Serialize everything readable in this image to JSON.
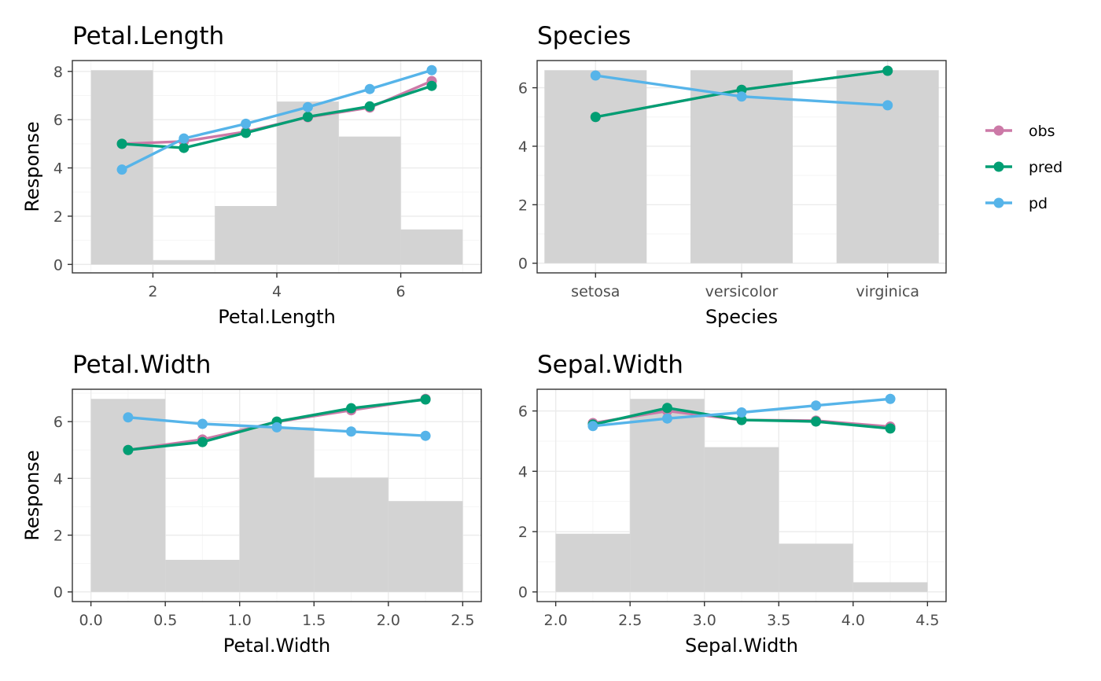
{
  "colors": {
    "obs": "#CC79A7",
    "pred": "#009E73",
    "pd": "#56B4E9",
    "hist": "#d3d3d3",
    "grid_major": "#ebebeb",
    "grid_minor": "#f5f5f5",
    "panel_border": "#333333"
  },
  "legend": {
    "items": [
      {
        "key": "obs",
        "label": "obs"
      },
      {
        "key": "pred",
        "label": "pred"
      },
      {
        "key": "pd",
        "label": "pd"
      }
    ]
  },
  "chart_data": [
    {
      "type": "line",
      "title": "Petal.Length",
      "xlabel": "Petal.Length",
      "ylabel": "Response",
      "xlim": [
        0.7,
        7.3
      ],
      "ylim": [
        -0.35,
        8.45
      ],
      "xticks": [
        2,
        4,
        6
      ],
      "xtick_labels": [
        "2",
        "4",
        "6"
      ],
      "yticks": [
        0,
        2,
        4,
        6,
        8
      ],
      "ytick_labels": [
        "0",
        "2",
        "4",
        "6",
        "8"
      ],
      "histogram": {
        "edges": [
          1,
          2,
          3,
          4,
          5,
          6,
          7
        ],
        "heights": [
          8.05,
          0.18,
          2.42,
          6.75,
          5.3,
          1.45
        ]
      },
      "x": [
        1.5,
        2.5,
        3.5,
        4.5,
        5.5,
        6.5
      ],
      "series": [
        {
          "name": "obs",
          "values": [
            5.0,
            5.1,
            5.5,
            6.1,
            6.5,
            7.6
          ]
        },
        {
          "name": "pred",
          "values": [
            5.0,
            4.83,
            5.45,
            6.12,
            6.55,
            7.4
          ]
        },
        {
          "name": "pd",
          "values": [
            3.93,
            5.22,
            5.83,
            6.52,
            7.27,
            8.05
          ]
        }
      ]
    },
    {
      "type": "line",
      "title": "Species",
      "xlabel": "Species",
      "ylabel": "",
      "categorical": true,
      "categories": [
        "setosa",
        "versicolor",
        "virginica"
      ],
      "ylim": [
        -0.33,
        6.93
      ],
      "yticks": [
        0,
        2,
        4,
        6
      ],
      "ytick_labels": [
        "0",
        "2",
        "4",
        "6"
      ],
      "bars": [
        6.6,
        6.6,
        6.6
      ],
      "series": [
        {
          "name": "obs",
          "values": [
            5.0,
            5.93,
            6.58
          ]
        },
        {
          "name": "pred",
          "values": [
            5.0,
            5.93,
            6.58
          ]
        },
        {
          "name": "pd",
          "values": [
            6.42,
            5.7,
            5.4
          ]
        }
      ]
    },
    {
      "type": "line",
      "title": "Petal.Width",
      "xlabel": "Petal.Width",
      "ylabel": "Response",
      "xlim": [
        -0.125,
        2.625
      ],
      "ylim": [
        -0.34,
        7.14
      ],
      "xticks": [
        0.0,
        0.5,
        1.0,
        1.5,
        2.0,
        2.5
      ],
      "xtick_labels": [
        "0.0",
        "0.5",
        "1.0",
        "1.5",
        "2.0",
        "2.5"
      ],
      "yticks": [
        0,
        2,
        4,
        6
      ],
      "ytick_labels": [
        "0",
        "2",
        "4",
        "6"
      ],
      "histogram": {
        "edges": [
          0,
          0.5,
          1.0,
          1.5,
          2.0,
          2.5
        ],
        "heights": [
          6.8,
          1.13,
          5.8,
          4.03,
          3.2
        ]
      },
      "x": [
        0.25,
        0.75,
        1.25,
        1.75,
        2.25
      ],
      "series": [
        {
          "name": "obs",
          "values": [
            5.0,
            5.37,
            5.99,
            6.4,
            6.8
          ]
        },
        {
          "name": "pred",
          "values": [
            5.0,
            5.28,
            6.0,
            6.47,
            6.78
          ]
        },
        {
          "name": "pd",
          "values": [
            6.15,
            5.92,
            5.8,
            5.65,
            5.5
          ]
        }
      ]
    },
    {
      "type": "line",
      "title": "Sepal.Width",
      "xlabel": "Sepal.Width",
      "ylabel": "",
      "xlim": [
        1.875,
        4.625
      ],
      "ylim": [
        -0.32,
        6.72
      ],
      "xticks": [
        2.0,
        2.5,
        3.0,
        3.5,
        4.0,
        4.5
      ],
      "xtick_labels": [
        "2.0",
        "2.5",
        "3.0",
        "3.5",
        "4.0",
        "4.5"
      ],
      "yticks": [
        0,
        2,
        4,
        6
      ],
      "ytick_labels": [
        "0",
        "2",
        "4",
        "6"
      ],
      "histogram": {
        "edges": [
          2.0,
          2.5,
          3.0,
          3.5,
          4.0,
          4.5
        ],
        "heights": [
          1.93,
          6.4,
          4.8,
          1.6,
          0.32
        ]
      },
      "x": [
        2.25,
        2.75,
        3.25,
        3.75,
        4.25
      ],
      "series": [
        {
          "name": "obs",
          "values": [
            5.6,
            6.0,
            5.7,
            5.68,
            5.48
          ]
        },
        {
          "name": "pred",
          "values": [
            5.55,
            6.1,
            5.7,
            5.65,
            5.42
          ]
        },
        {
          "name": "pd",
          "values": [
            5.5,
            5.75,
            5.95,
            6.18,
            6.4
          ]
        }
      ]
    }
  ]
}
